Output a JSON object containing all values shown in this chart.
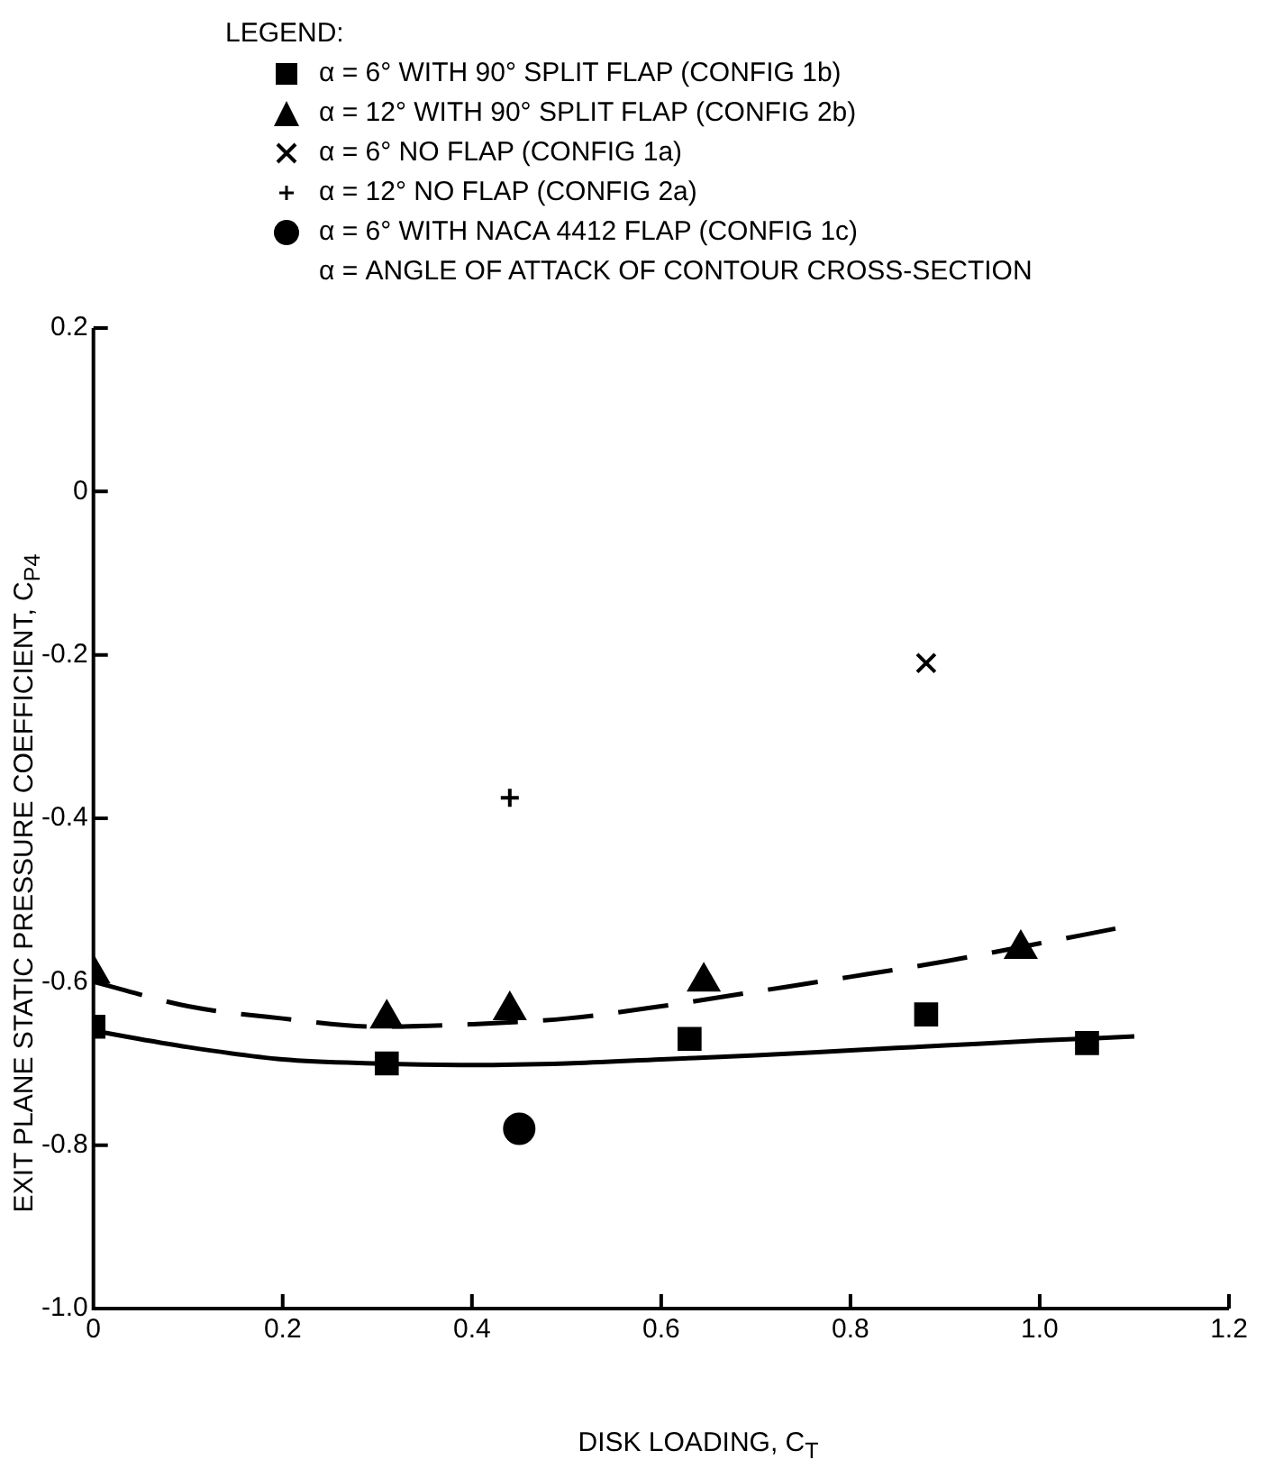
{
  "chart_data": {
    "type": "scatter",
    "xlabel": "DISK LOADING, C$_{T}$",
    "ylabel": "EXIT PLANE STATIC PRESSURE COEFFICIENT, C$_{P4}$",
    "legend_title": "LEGEND:",
    "legend": "top left",
    "annotations": [
      "α = ANGLE OF ATTACK OF CONTOUR CROSS-SECTION"
    ],
    "xlim": [
      0,
      1.2
    ],
    "xticks": [
      0,
      0.2,
      0.4,
      0.6,
      0.8,
      {
        "value": 1,
        "label": "1.0"
      },
      1.2
    ],
    "ylim": [
      -1,
      0.2
    ],
    "yticks": [
      {
        "value": -1,
        "label": "-1.0"
      },
      -0.8,
      -0.6,
      -0.4,
      -0.2,
      0,
      0.2
    ],
    "grid": false,
    "series": [
      {
        "name": "α = 6° WITH 90° SPLIT FLAP (CONFIG 1b)",
        "color": "#000000",
        "marker": "square",
        "x": [
          0,
          0.31,
          0.63,
          0.88,
          1.05
        ],
        "values": [
          -0.655,
          -0.7,
          -0.67,
          -0.64,
          -0.675
        ]
      },
      {
        "name": "α = 12° WITH 90° SPLIT FLAP (CONFIG 2b)",
        "color": "#000000",
        "marker": "triangle",
        "x": [
          0,
          0.31,
          0.44,
          0.645,
          0.98
        ],
        "values": [
          -0.59,
          -0.645,
          -0.635,
          -0.6,
          -0.56
        ]
      },
      {
        "name": "α = 6°  NO FLAP (CONFIG 1a)",
        "color": "#000000",
        "marker": "cross",
        "x": [
          0.88
        ],
        "values": [
          -0.21
        ]
      },
      {
        "name": "α = 12°  NO FLAP (CONFIG 2a)",
        "color": "#000000",
        "marker": "plus",
        "x": [
          0.44
        ],
        "values": [
          -0.375
        ]
      },
      {
        "name": "α = 6° WITH NACA 4412 FLAP (CONFIG 1c)",
        "color": "#000000",
        "marker": "circle",
        "x": [
          0.45
        ],
        "values": [
          -0.78
        ]
      },
      {
        "type": "line",
        "color": "#000000",
        "marker": "none",
        "line_style": "dashed",
        "x": [
          0,
          0.1,
          0.2,
          0.3,
          0.4,
          0.5,
          0.6,
          0.7,
          0.8,
          0.9,
          1.0,
          1.08
        ],
        "values": [
          -0.6,
          -0.63,
          -0.645,
          -0.655,
          -0.652,
          -0.645,
          -0.63,
          -0.612,
          -0.594,
          -0.575,
          -0.553,
          -0.535
        ]
      },
      {
        "type": "line",
        "color": "#000000",
        "marker": "none",
        "line_style": "solid",
        "x": [
          0,
          0.1,
          0.2,
          0.3,
          0.4,
          0.5,
          0.6,
          0.7,
          0.8,
          0.9,
          1.0,
          1.1
        ],
        "values": [
          -0.66,
          -0.68,
          -0.695,
          -0.7,
          -0.702,
          -0.7,
          -0.695,
          -0.69,
          -0.684,
          -0.678,
          -0.672,
          -0.667
        ]
      }
    ]
  }
}
